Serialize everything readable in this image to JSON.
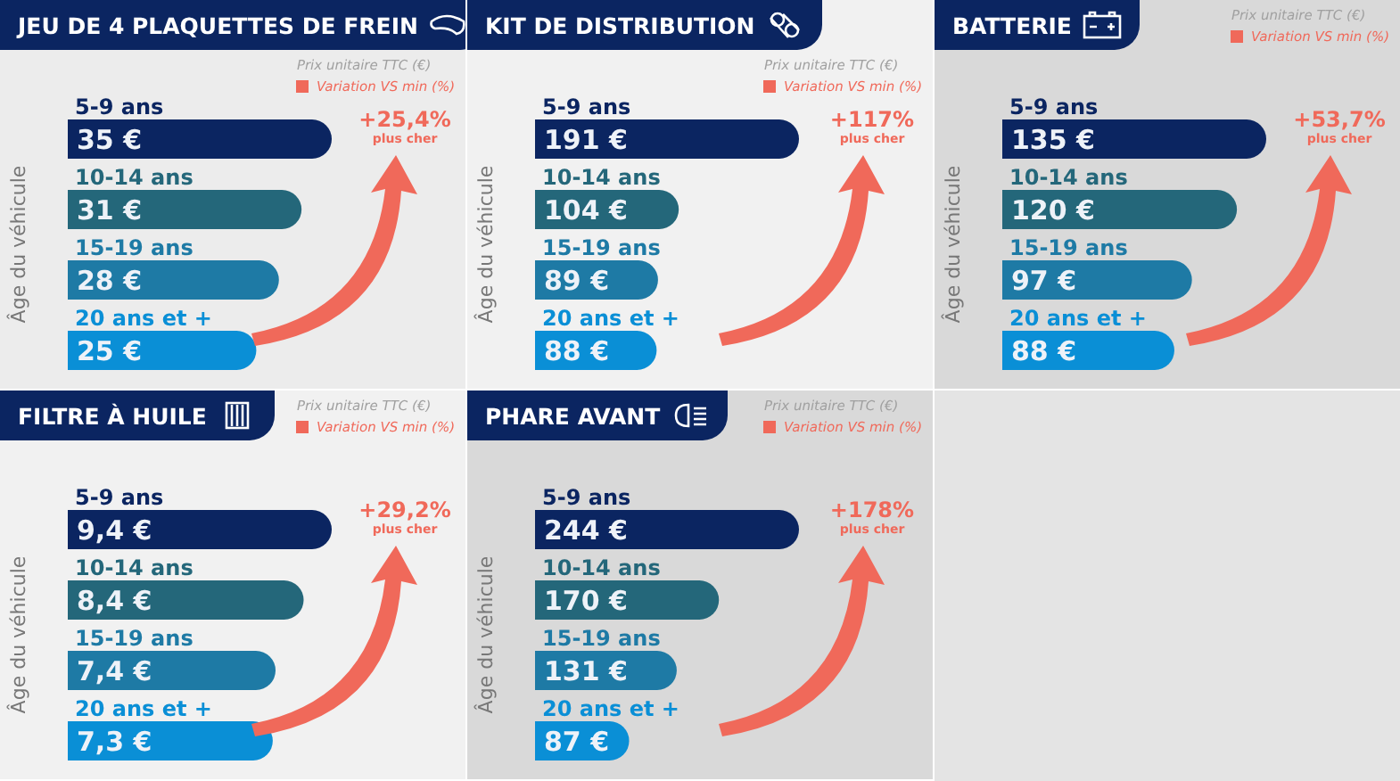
{
  "chart_data": [
    {
      "type": "bar",
      "orientation": "horizontal",
      "title": "JEU DE 4 PLAQUETTES DE FREIN",
      "ylabel": "Âge du véhicule",
      "categories": [
        "5-9 ans",
        "10-14 ans",
        "15-19 ans",
        "20 ans et +"
      ],
      "values": [
        35,
        31,
        28,
        25
      ],
      "value_labels": [
        "35 €",
        "31 €",
        "28 €",
        "25 €"
      ],
      "colors": [
        "#0b2561",
        "#24677a",
        "#1e7aa5",
        "#0a8fd6"
      ],
      "annotations": [
        "Prix unitaire TTC (€)",
        "Variation VS min (%)",
        "+25,4%",
        "plus cher"
      ]
    },
    {
      "type": "bar",
      "orientation": "horizontal",
      "title": "KIT DE DISTRIBUTION",
      "ylabel": "Âge du véhicule",
      "categories": [
        "5-9 ans",
        "10-14 ans",
        "15-19 ans",
        "20 ans et +"
      ],
      "values": [
        191,
        104,
        89,
        88
      ],
      "value_labels": [
        "191 €",
        "104 €",
        "89 €",
        "88 €"
      ],
      "colors": [
        "#0b2561",
        "#24677a",
        "#1e7aa5",
        "#0a8fd6"
      ],
      "annotations": [
        "Prix unitaire TTC (€)",
        "Variation VS min (%)",
        "+117%",
        "plus cher"
      ]
    },
    {
      "type": "bar",
      "orientation": "horizontal",
      "title": "BATTERIE",
      "ylabel": "Âge du véhicule",
      "categories": [
        "5-9 ans",
        "10-14 ans",
        "15-19 ans",
        "20 ans et +"
      ],
      "values": [
        135,
        120,
        97,
        88
      ],
      "value_labels": [
        "135 €",
        "120 €",
        "97 €",
        "88 €"
      ],
      "colors": [
        "#0b2561",
        "#24677a",
        "#1e7aa5",
        "#0a8fd6"
      ],
      "annotations": [
        "Prix unitaire TTC (€)",
        "Variation VS min (%)",
        "+53,7%",
        "plus cher"
      ]
    },
    {
      "type": "bar",
      "orientation": "horizontal",
      "title": "FILTRE À HUILE",
      "ylabel": "Âge du véhicule",
      "categories": [
        "5-9 ans",
        "10-14 ans",
        "15-19 ans",
        "20 ans et +"
      ],
      "values": [
        9.4,
        8.4,
        7.4,
        7.3
      ],
      "value_labels": [
        "9,4 €",
        "8,4 €",
        "7,4 €",
        "7,3 €"
      ],
      "colors": [
        "#0b2561",
        "#24677a",
        "#1e7aa5",
        "#0a8fd6"
      ],
      "annotations": [
        "Prix unitaire TTC (€)",
        "Variation VS min (%)",
        "+29,2%",
        "plus cher"
      ]
    },
    {
      "type": "bar",
      "orientation": "horizontal",
      "title": "PHARE AVANT",
      "ylabel": "Âge du véhicule",
      "categories": [
        "5-9 ans",
        "10-14 ans",
        "15-19 ans",
        "20 ans et +"
      ],
      "values": [
        244,
        170,
        131,
        87
      ],
      "value_labels": [
        "244 €",
        "170 €",
        "131 €",
        "87 €"
      ],
      "colors": [
        "#0b2561",
        "#24677a",
        "#1e7aa5",
        "#0a8fd6"
      ],
      "annotations": [
        "Prix unitaire TTC (€)",
        "Variation VS min (%)",
        "+178%",
        "plus cher"
      ]
    }
  ]
}
